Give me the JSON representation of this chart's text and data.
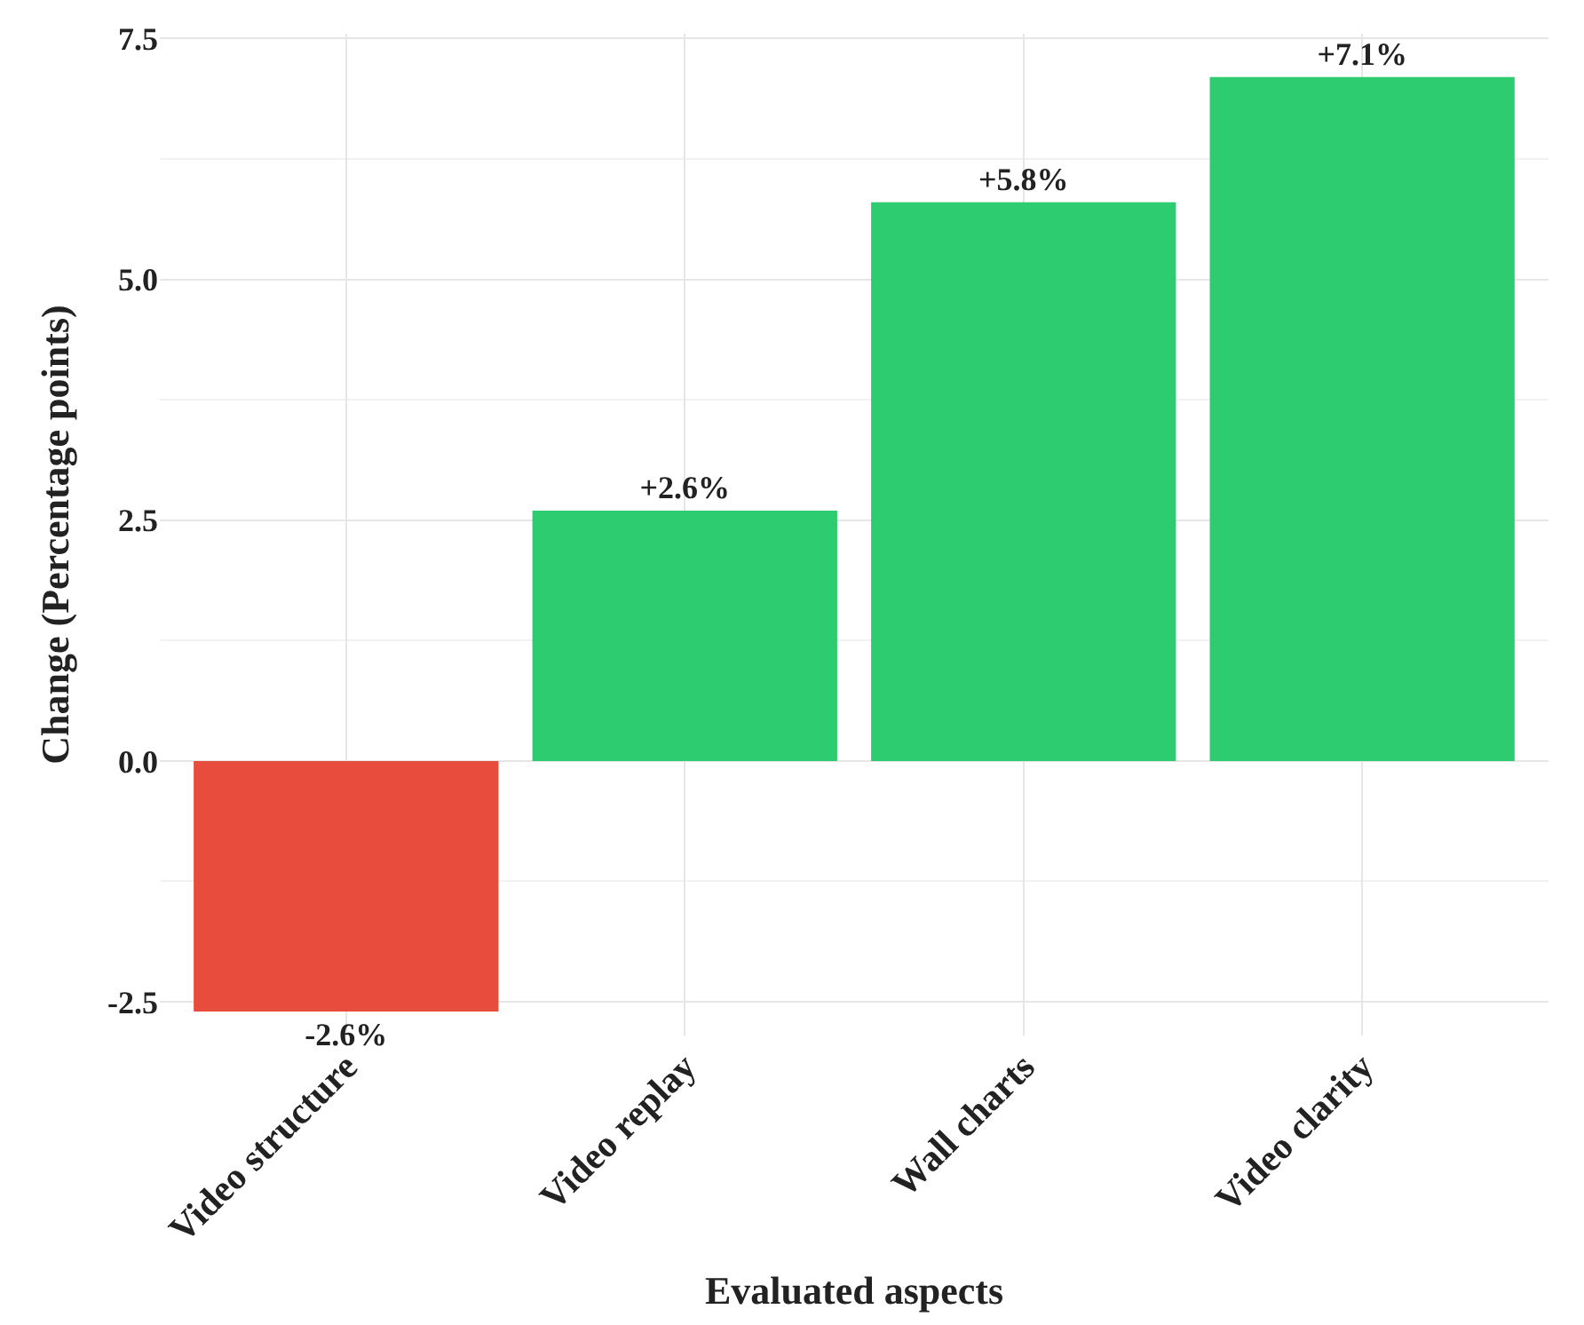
{
  "chart_data": {
    "type": "bar",
    "xlabel": "Evaluated aspects",
    "ylabel": "Change (Percentage points)",
    "categories": [
      "Video structure",
      "Video replay",
      "Wall charts",
      "Video clarity"
    ],
    "values": [
      -2.6,
      2.6,
      5.8,
      7.1
    ],
    "colors": [
      "#e74c3c",
      "#2ecc71",
      "#2ecc71",
      "#2ecc71"
    ],
    "value_labels": [
      "-2.6%",
      "+2.6%",
      "+5.8%",
      "+7.1%"
    ],
    "ylim": [
      -2.85,
      7.55
    ],
    "yticks": [
      {
        "value": -2.5,
        "label": "-2.5"
      },
      {
        "value": 0,
        "label": "0.0"
      },
      2.5,
      {
        "value": 5,
        "label": "5.0"
      },
      {
        "value": 7.5,
        "label": "7.5"
      }
    ],
    "grid": true
  }
}
